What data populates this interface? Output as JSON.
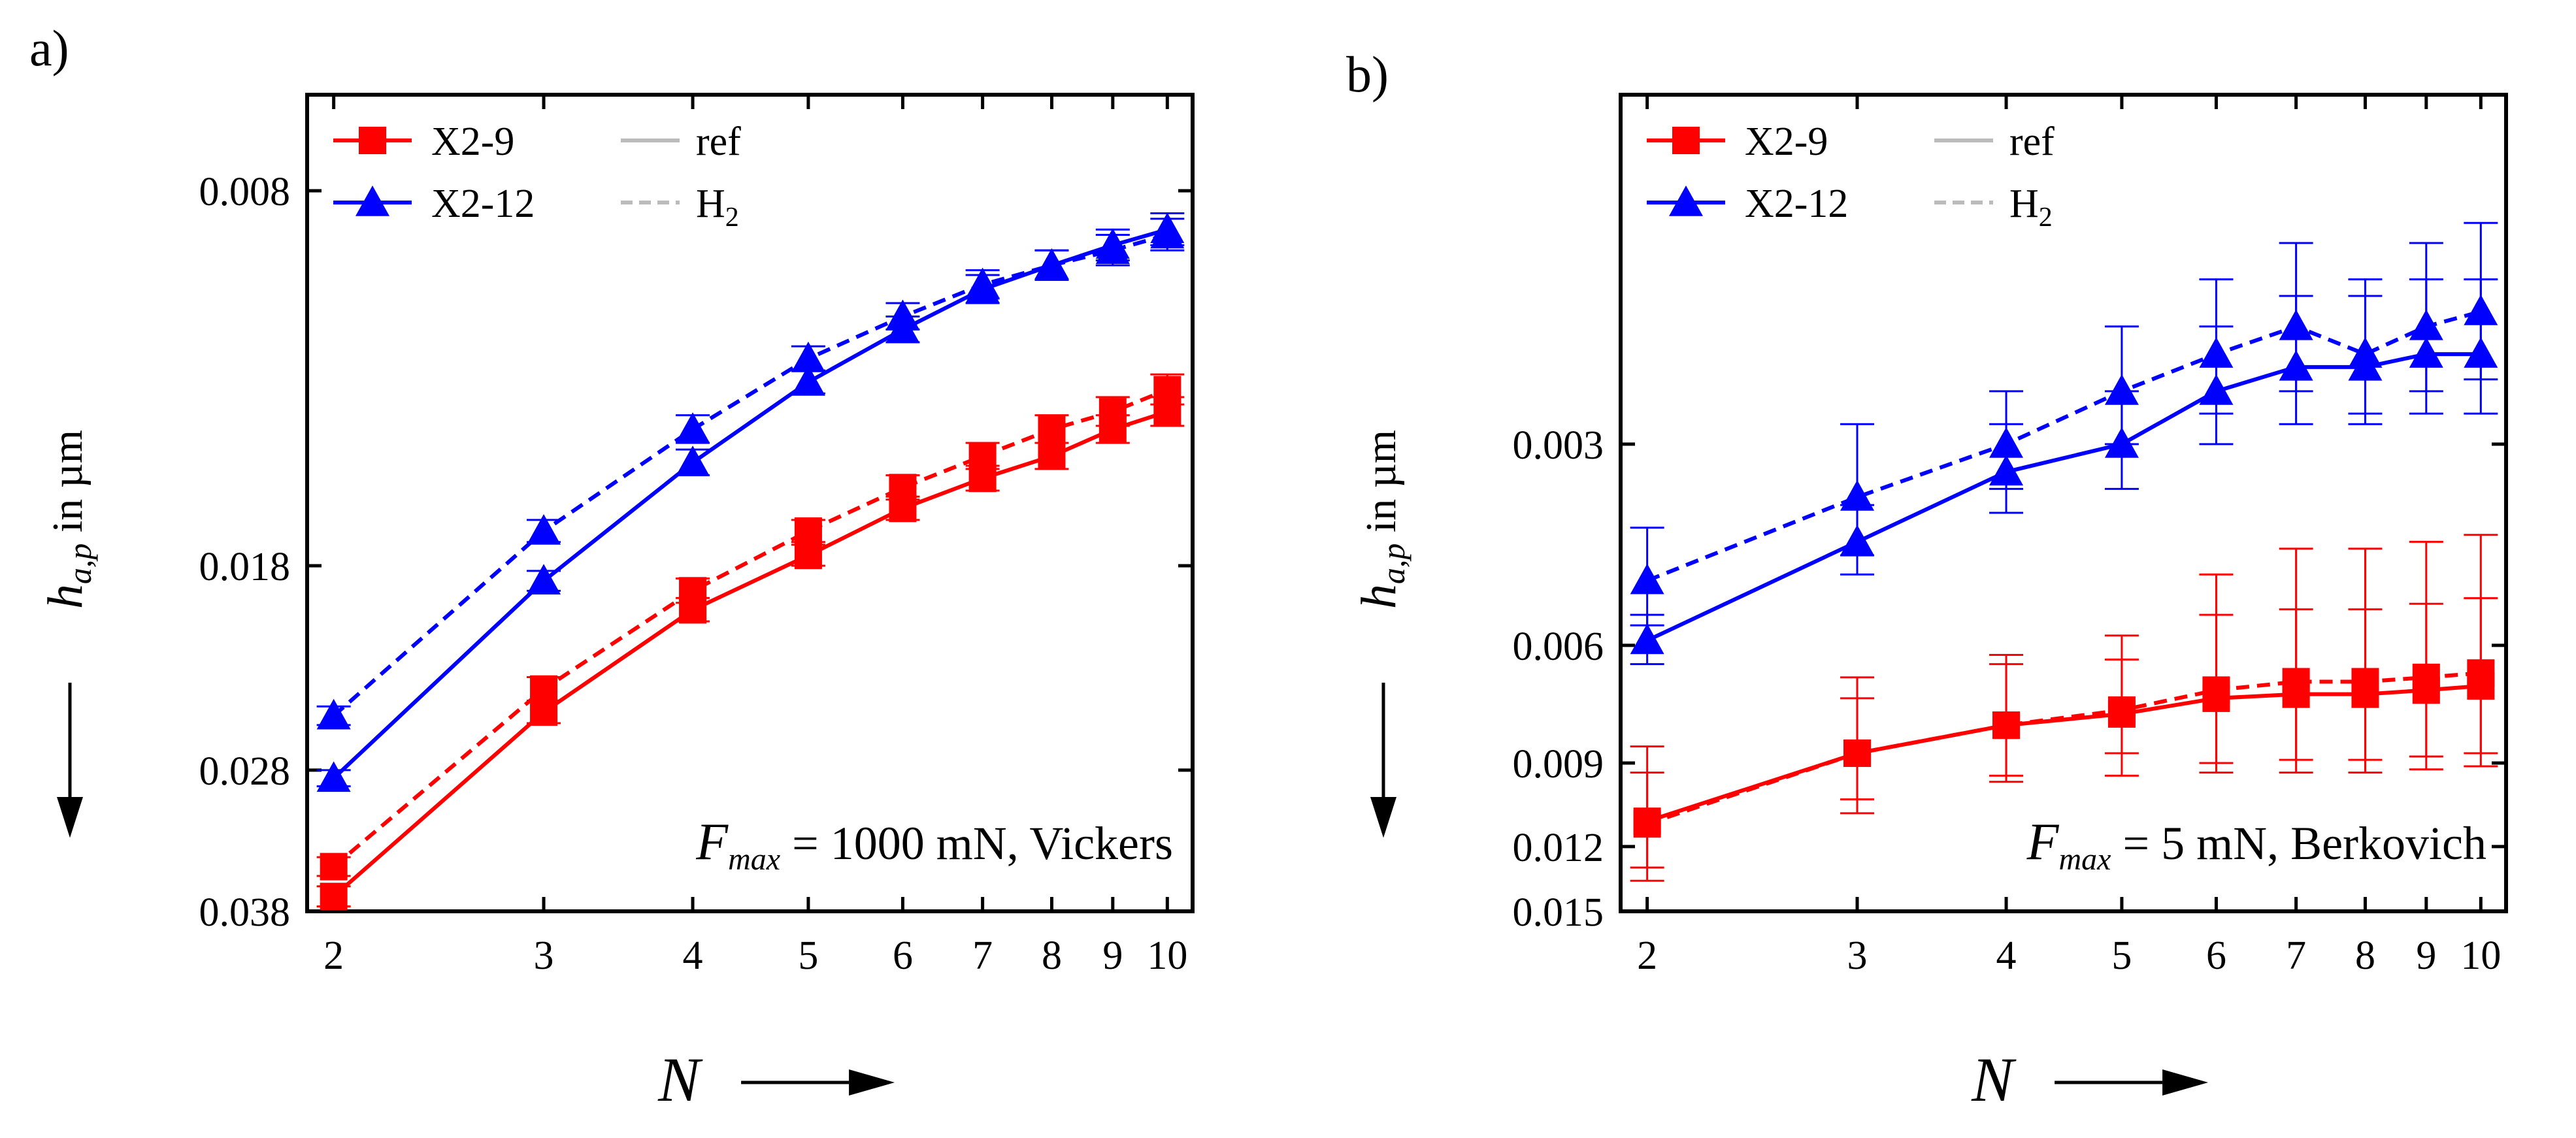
{
  "colors": {
    "x2_9": "#ff0000",
    "x2_12": "#0000ff",
    "legend_gray": "#bbbbbb",
    "axis": "#000000"
  },
  "axis_labels": {
    "y_main": "h",
    "y_sub": "a,p",
    "y_unit": " in µm",
    "x": "N"
  },
  "legend": {
    "series_a": "X2-9",
    "series_b": "X2-12",
    "style_solid": "ref",
    "style_dashed_main": "H",
    "style_dashed_sub": "2"
  },
  "chart_data": [
    {
      "panel": "a)",
      "type": "line",
      "x_scale": "log",
      "y_scale": "log-reversed",
      "xlim": [
        1.9,
        10.5
      ],
      "ylim": [
        0.0065,
        0.038
      ],
      "x_ticks": [
        2,
        3,
        4,
        5,
        6,
        7,
        8,
        9,
        10
      ],
      "y_ticks": [
        "0.008",
        "0.018",
        "0.028",
        "0.038"
      ],
      "xlabel": "N",
      "ylabel": "h_a,p in µm",
      "annotation": {
        "var": "F",
        "sub": "max",
        "text": " = 1000 mN, Vickers"
      },
      "legend_position": "top-left",
      "x": [
        2,
        3,
        4,
        5,
        6,
        7,
        8,
        9,
        10
      ],
      "series": [
        {
          "name": "X2-9",
          "condition": "ref",
          "marker": "square",
          "line": "solid",
          "values": [
            0.0368,
            0.0247,
            0.0198,
            0.0176,
            0.0159,
            0.0149,
            0.0142,
            0.0134,
            0.0129
          ],
          "err": [
            0.0008,
            0.0006,
            0.0005,
            0.0004,
            0.0004,
            0.0004,
            0.0004,
            0.0004,
            0.0004
          ]
        },
        {
          "name": "X2-9",
          "condition": "H2",
          "marker": "square",
          "line": "dashed",
          "values": [
            0.0345,
            0.0235,
            0.019,
            0.0167,
            0.0152,
            0.0142,
            0.0134,
            0.0129,
            0.0123
          ],
          "err": [
            0.0007,
            0.0006,
            0.0005,
            0.0004,
            0.0004,
            0.0004,
            0.0004,
            0.0004,
            0.0004
          ]
        },
        {
          "name": "X2-12",
          "condition": "ref",
          "marker": "triangle",
          "line": "solid",
          "values": [
            0.0285,
            0.0186,
            0.0144,
            0.0121,
            0.0108,
            0.0099,
            0.0094,
            0.009,
            0.0087
          ],
          "err": [
            0.0005,
            0.0004,
            0.0004,
            0.0003,
            0.0003,
            0.0003,
            0.0003,
            0.0003,
            0.0003
          ]
        },
        {
          "name": "X2-12",
          "condition": "H2",
          "marker": "triangle",
          "line": "dashed",
          "values": [
            0.0249,
            0.0167,
            0.0134,
            0.0115,
            0.0105,
            0.0098,
            0.0094,
            0.0091,
            0.0088
          ],
          "err": [
            0.0005,
            0.0004,
            0.0004,
            0.0003,
            0.0003,
            0.0003,
            0.0003,
            0.0003,
            0.0003
          ]
        }
      ]
    },
    {
      "panel": "b)",
      "type": "line",
      "x_scale": "log",
      "y_scale": "log-reversed",
      "xlim": [
        1.9,
        10.5
      ],
      "ylim": [
        0.0009,
        0.015
      ],
      "x_ticks": [
        2,
        3,
        4,
        5,
        6,
        7,
        8,
        9,
        10
      ],
      "y_ticks": [
        "0.003",
        "0.006",
        "0.009",
        "0.012",
        "0.015"
      ],
      "xlabel": "N",
      "ylabel": "h_a,p in µm",
      "annotation": {
        "var": "F",
        "sub": "max",
        "text": " = 5 mN, Berkovich"
      },
      "legend_position": "top-left",
      "x": [
        2,
        3,
        4,
        5,
        6,
        7,
        8,
        9,
        10
      ],
      "series": [
        {
          "name": "X2-9",
          "condition": "ref",
          "marker": "square",
          "line": "solid",
          "values": [
            0.011,
            0.0087,
            0.0079,
            0.0076,
            0.0072,
            0.0071,
            0.0071,
            0.007,
            0.0069
          ],
          "err": [
            0.0025,
            0.002,
            0.0015,
            0.0018,
            0.0018,
            0.0018,
            0.0018,
            0.0018,
            0.0018
          ]
        },
        {
          "name": "X2-9",
          "condition": "H2",
          "marker": "square",
          "line": "dashed",
          "values": [
            0.0111,
            0.0087,
            0.0079,
            0.0075,
            0.007,
            0.0068,
            0.0068,
            0.0067,
            0.0066
          ],
          "err": [
            0.0018,
            0.0015,
            0.0017,
            0.0012,
            0.0023,
            0.0025,
            0.0025,
            0.0025,
            0.0025
          ]
        },
        {
          "name": "X2-12",
          "condition": "ref",
          "marker": "triangle",
          "line": "solid",
          "values": [
            0.0059,
            0.0042,
            0.0033,
            0.003,
            0.0025,
            0.0023,
            0.0023,
            0.0022,
            0.0022
          ],
          "err": [
            0.0005,
            0.0005,
            0.0005,
            0.0005,
            0.0005,
            0.0005,
            0.0005,
            0.0005,
            0.0005
          ]
        },
        {
          "name": "X2-12",
          "condition": "H2",
          "marker": "triangle",
          "line": "dashed",
          "values": [
            0.0048,
            0.0036,
            0.003,
            0.0025,
            0.0022,
            0.002,
            0.0022,
            0.002,
            0.0019
          ],
          "err": [
            0.0008,
            0.0008,
            0.0005,
            0.0005,
            0.0005,
            0.0005,
            0.0005,
            0.0005,
            0.0005
          ]
        }
      ]
    }
  ]
}
